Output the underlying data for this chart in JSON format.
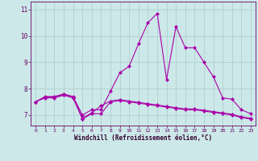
{
  "xlabel": "Windchill (Refroidissement éolien,°C)",
  "ylabel": "",
  "x": [
    0,
    1,
    2,
    3,
    4,
    5,
    6,
    7,
    8,
    9,
    10,
    11,
    12,
    13,
    14,
    15,
    16,
    17,
    18,
    19,
    20,
    21,
    22,
    23
  ],
  "line1": [
    7.5,
    7.7,
    7.7,
    7.8,
    7.7,
    7.0,
    7.2,
    7.2,
    7.9,
    8.6,
    8.85,
    9.7,
    10.5,
    10.85,
    8.35,
    10.35,
    9.55,
    9.55,
    9.0,
    8.45,
    7.65,
    7.6,
    7.2,
    7.05
  ],
  "line2": [
    7.5,
    7.68,
    7.68,
    7.78,
    7.68,
    6.88,
    7.08,
    7.35,
    7.53,
    7.58,
    7.53,
    7.48,
    7.43,
    7.38,
    7.33,
    7.28,
    7.23,
    7.23,
    7.18,
    7.13,
    7.08,
    7.03,
    6.93,
    6.88
  ],
  "line3": [
    7.5,
    7.65,
    7.65,
    7.75,
    7.65,
    6.85,
    7.05,
    7.05,
    7.5,
    7.55,
    7.5,
    7.45,
    7.4,
    7.35,
    7.3,
    7.25,
    7.2,
    7.2,
    7.15,
    7.1,
    7.05,
    7.0,
    6.9,
    6.85
  ],
  "bg_color": "#cce8e8",
  "line_color": "#aa00aa",
  "grid_color": "#aacccc",
  "tick_color": "#660066",
  "label_color": "#330033",
  "ylim": [
    6.6,
    11.3
  ],
  "yticks": [
    7,
    8,
    9,
    10,
    11
  ],
  "xticks": [
    0,
    1,
    2,
    3,
    4,
    5,
    6,
    7,
    8,
    9,
    10,
    11,
    12,
    13,
    14,
    15,
    16,
    17,
    18,
    19,
    20,
    21,
    22,
    23
  ],
  "marker": "D",
  "markersize": 2.0,
  "linewidth": 0.8
}
